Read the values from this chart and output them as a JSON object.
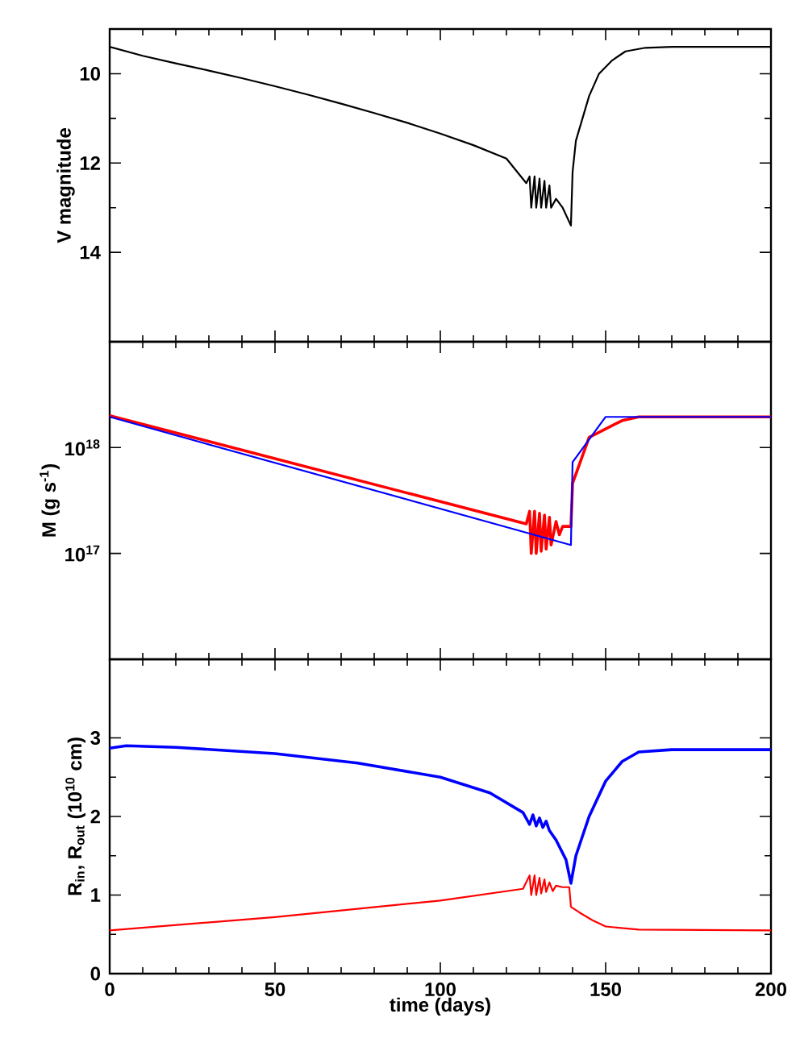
{
  "chart_data": [
    {
      "type": "line",
      "ylabel": "V magnitude",
      "xlim": [
        0,
        200
      ],
      "xticks": [
        0,
        50,
        100,
        150,
        200
      ],
      "ylim": [
        16,
        9
      ],
      "yticks": [
        10,
        12,
        14
      ],
      "tick_labels": "y",
      "series": [
        {
          "color": "#000000",
          "x": [
            0,
            10,
            20,
            30,
            40,
            50,
            60,
            70,
            80,
            90,
            100,
            110,
            120,
            126,
            127,
            127.5,
            128.5,
            129,
            130,
            130.5,
            131.5,
            132,
            133,
            133.5,
            135,
            137,
            139.5,
            140,
            141,
            143,
            145,
            148,
            152,
            156,
            162,
            170,
            200
          ],
          "values": [
            9.4,
            9.6,
            9.77,
            9.93,
            10.1,
            10.28,
            10.47,
            10.67,
            10.88,
            11.1,
            11.34,
            11.6,
            11.9,
            12.45,
            12.3,
            13.0,
            12.3,
            13.0,
            12.35,
            13.0,
            12.4,
            13.0,
            12.5,
            13.0,
            12.8,
            13.0,
            13.4,
            12.2,
            11.5,
            11.0,
            10.5,
            10.0,
            9.7,
            9.5,
            9.42,
            9.4,
            9.4
          ]
        }
      ]
    },
    {
      "type": "line",
      "ylabel": "M (g s$^{-1}$)",
      "xlim": [
        0,
        200
      ],
      "xticks": [
        0,
        50,
        100,
        150,
        200
      ],
      "ylim": [
        1e+16,
        1e+19
      ],
      "yticks": [
        {
          "value": 1e+17,
          "label": "10$^{17}$"
        },
        {
          "value": 1e+18,
          "label": "10$^{18}$"
        }
      ],
      "log": "y",
      "tick_labels": "y",
      "series": [
        {
          "color": "#ff0000",
          "x": [
            0,
            126,
            127,
            127.5,
            128.5,
            129,
            130,
            130.5,
            131.5,
            132,
            133,
            133.5,
            135,
            136,
            137,
            139.5,
            140,
            145,
            150,
            155,
            160,
            200
          ],
          "values": [
            2e+18,
            1.9e+17,
            2.5e+17,
            1e+17,
            2.5e+17,
            1e+17,
            2.4e+17,
            1.05e+17,
            2.3e+17,
            1.1e+17,
            2.2e+17,
            1.2e+17,
            2e+17,
            1.5e+17,
            1.8e+17,
            1.8e+17,
            4.6e+17,
            1.25e+18,
            1.5e+18,
            1.8e+18,
            1.95e+18,
            1.95e+18
          ]
        },
        {
          "color": "#0000ff",
          "x": [
            0,
            139.5,
            140,
            150,
            200
          ],
          "values": [
            1.95e+18,
            1.2e+17,
            7.3e+17,
            1.95e+18,
            1.95e+18
          ]
        }
      ]
    },
    {
      "type": "line",
      "xlabel": "time (days)",
      "ylabel": "R$_{in}$, R$_{out}$ (10$^{10}$ cm)",
      "xlim": [
        0,
        200
      ],
      "xticks": [
        0,
        50,
        100,
        150,
        200
      ],
      "ylim": [
        0,
        4
      ],
      "yticks": [
        0,
        1,
        2,
        3
      ],
      "series": [
        {
          "color": "#0000ff",
          "x": [
            0,
            5,
            20,
            50,
            75,
            100,
            115,
            125,
            127,
            128,
            129,
            130,
            131,
            132,
            133,
            135,
            138,
            139.5,
            141,
            145,
            150,
            155,
            160,
            170,
            200
          ],
          "values": [
            2.87,
            2.9,
            2.88,
            2.8,
            2.68,
            2.5,
            2.3,
            2.05,
            1.9,
            2.02,
            1.88,
            1.98,
            1.86,
            1.94,
            1.82,
            1.7,
            1.45,
            1.15,
            1.5,
            2.0,
            2.45,
            2.7,
            2.82,
            2.85,
            2.85
          ]
        },
        {
          "color": "#ff0000",
          "x": [
            0,
            50,
            100,
            125,
            127,
            127.5,
            128.5,
            129,
            130,
            130.5,
            131.5,
            132,
            133,
            134,
            135,
            137,
            139,
            139.5,
            142,
            146,
            150,
            160,
            200
          ],
          "values": [
            0.55,
            0.72,
            0.93,
            1.08,
            1.25,
            1.0,
            1.25,
            1.0,
            1.22,
            1.02,
            1.2,
            1.04,
            1.16,
            1.05,
            1.12,
            1.1,
            1.1,
            0.85,
            0.78,
            0.68,
            0.6,
            0.56,
            0.55
          ]
        }
      ]
    }
  ]
}
